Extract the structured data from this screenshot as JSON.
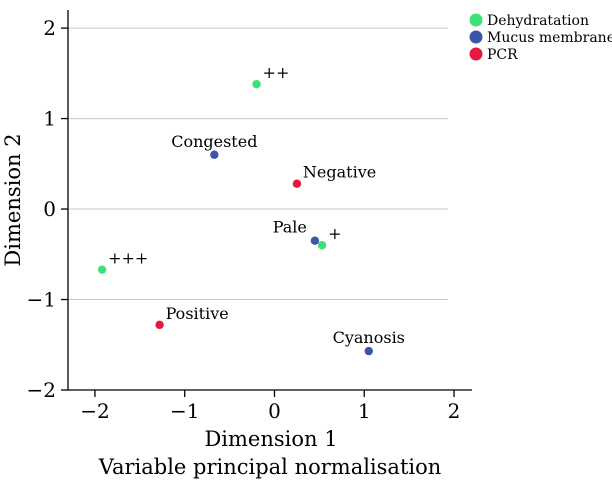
{
  "chart_data": {
    "type": "scatter",
    "title": "",
    "xlabel": "Dimension 1",
    "xlabel2": "Variable principal normalisation",
    "ylabel": "Dimension 2",
    "xlim": [
      -2.3,
      2.2
    ],
    "ylim": [
      -2.0,
      2.2
    ],
    "xticks": [
      -2,
      -1,
      0,
      1,
      2
    ],
    "yticks": [
      -2,
      -1,
      0,
      1,
      2
    ],
    "xtick_labels": [
      "−2",
      "−1",
      "0",
      "1",
      "2"
    ],
    "ytick_labels": [
      "−2",
      "−1",
      "0",
      "1",
      "2"
    ],
    "grid": "horizontal",
    "legend_position": "top-right",
    "series": [
      {
        "name": "Dehydratation",
        "color": "#3ee07a",
        "points": [
          {
            "x": -0.2,
            "y": 1.38,
            "label": "++",
            "label_pos": "above-right"
          },
          {
            "x": 0.53,
            "y": -0.4,
            "label": "+",
            "label_pos": "above-right"
          },
          {
            "x": -1.92,
            "y": -0.67,
            "label": "+++",
            "label_pos": "above-right"
          }
        ]
      },
      {
        "name": "Mucus membrane",
        "color": "#3b55a8",
        "points": [
          {
            "x": -0.67,
            "y": 0.6,
            "label": "Congested",
            "label_pos": "above"
          },
          {
            "x": 0.45,
            "y": -0.35,
            "label": "Pale",
            "label_pos": "above-left"
          },
          {
            "x": 1.05,
            "y": -1.57,
            "label": "Cyanosis",
            "label_pos": "above"
          }
        ]
      },
      {
        "name": "PCR",
        "color": "#e8173f",
        "points": [
          {
            "x": 0.25,
            "y": 0.28,
            "label": "Negative",
            "label_pos": "above-right"
          },
          {
            "x": -1.28,
            "y": -1.28,
            "label": "Positive",
            "label_pos": "above-right"
          }
        ]
      }
    ]
  }
}
